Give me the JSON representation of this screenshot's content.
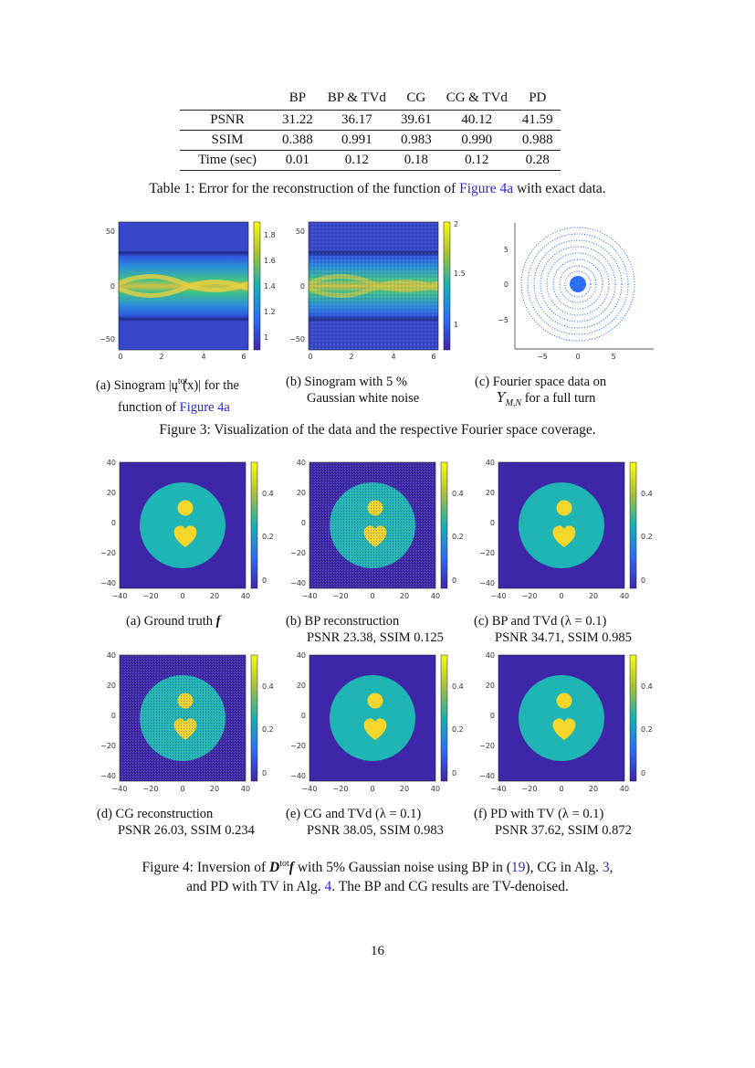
{
  "table": {
    "headers": [
      "",
      "BP",
      "BP & TVd",
      "CG",
      "CG & TVd",
      "PD"
    ],
    "rows": [
      {
        "label": "PSNR",
        "values": [
          "31.22",
          "36.17",
          "39.61",
          "40.12",
          "41.59"
        ]
      },
      {
        "label": "SSIM",
        "values": [
          "0.388",
          "0.991",
          "0.983",
          "0.990",
          "0.988"
        ]
      },
      {
        "label": "Time (sec)",
        "values": [
          "0.01",
          "0.12",
          "0.18",
          "0.12",
          "0.28"
        ]
      }
    ],
    "caption_prefix": "Table 1: Error for the reconstruction of the function of ",
    "caption_link": "Figure 4a",
    "caption_suffix": " with exact data."
  },
  "figure3": {
    "panels": [
      {
        "yticks": [
          "50",
          "0",
          "−50"
        ],
        "xticks": [
          "0",
          "2",
          "4",
          "6"
        ],
        "cbar": [
          "1.8",
          "1.6",
          "1.4",
          "1.2",
          "1"
        ],
        "caption_line1": "(a) Sinogram |u",
        "caption_sup": "tot",
        "caption_sub": "t",
        "caption_line1_end": "(x)| for the",
        "caption_line2_prefix": "function of ",
        "caption_line2_link": "Figure 4a"
      },
      {
        "yticks": [
          "50",
          "0",
          "−50"
        ],
        "xticks": [
          "0",
          "2",
          "4",
          "6"
        ],
        "cbar": [
          "2",
          "1.5",
          "1"
        ],
        "caption_line1": "(b) Sinogram with 5 %",
        "caption_line2": "Gaussian white noise"
      },
      {
        "yticks": [
          "5",
          "0",
          "−5"
        ],
        "xticks": [
          "−5",
          "0",
          "5"
        ],
        "caption_line1": "(c) Fourier space data on",
        "caption_line2_math": "Y",
        "caption_line2_sub": "M,N",
        "caption_line2_end": " for a full turn"
      }
    ],
    "caption": "Figure 3: Visualization of the data and the respective Fourier space coverage."
  },
  "figure4": {
    "axis_ticks": [
      "40",
      "20",
      "0",
      "−20",
      "−40"
    ],
    "x_ticks": [
      "−40",
      "−20",
      "0",
      "20",
      "40"
    ],
    "cbar_ticks": [
      "0.4",
      "0.2",
      "0"
    ],
    "panels": [
      {
        "line1": "(a) Ground truth ",
        "line1_bold": "f",
        "line2": ""
      },
      {
        "line1": "(b) BP reconstruction",
        "line2": "PSNR 23.38, SSIM 0.125"
      },
      {
        "line1": "(c) BP and TVd (λ = 0.1)",
        "line2": "PSNR 34.71, SSIM 0.985"
      },
      {
        "line1": "(d) CG reconstruction",
        "line2": "PSNR 26.03, SSIM 0.234"
      },
      {
        "line1": "(e) CG and TVd (λ = 0.1)",
        "line2": "PSNR 38.05, SSIM 0.983"
      },
      {
        "line1": "(f) PD with TV (λ = 0.1)",
        "line2": "PSNR 37.62, SSIM 0.872"
      }
    ],
    "caption_part1": "Figure 4: Inversion of ",
    "caption_bold": "D",
    "caption_sup": "tot",
    "caption_bold2": "f",
    "caption_part2": " with 5% Gaussian noise using BP in (",
    "caption_ref1": "19",
    "caption_part3": "), CG in Alg. ",
    "caption_ref2": "3",
    "caption_part4": ",",
    "caption_line2_a": "and PD with TV in Alg. ",
    "caption_ref3": "4",
    "caption_line2_b": ". The BP and CG results are TV-denoised."
  },
  "page_number": "16",
  "colors": {
    "bg": "#3d26a8",
    "disk": "#1fb5b4",
    "shape": "#f5d62b",
    "link": "#2a2ad0"
  }
}
